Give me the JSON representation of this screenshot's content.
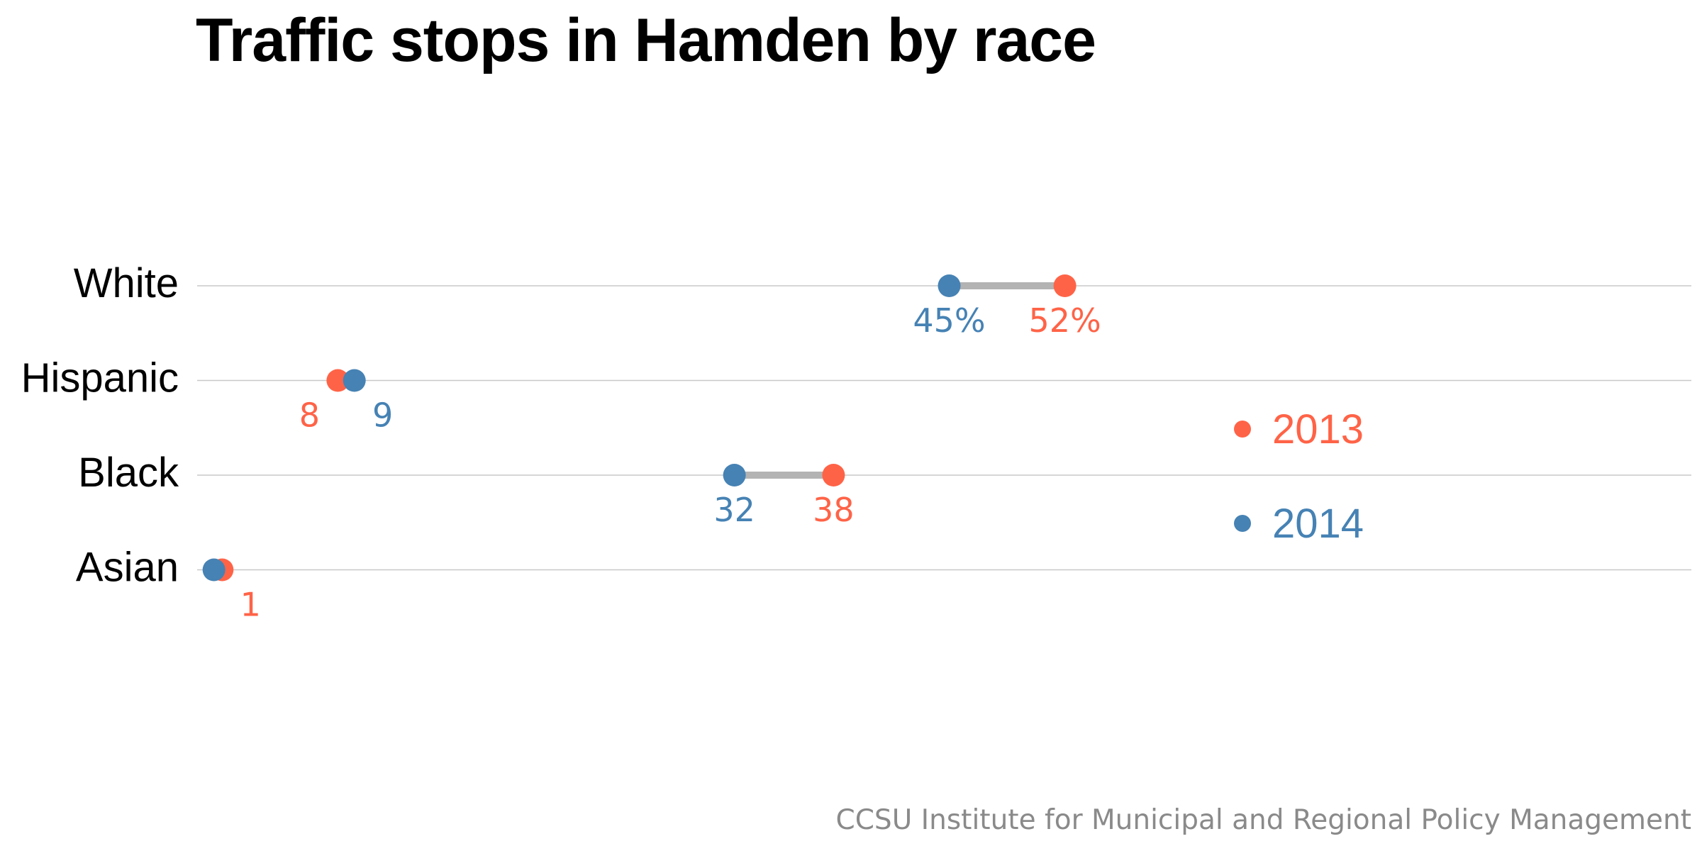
{
  "chart_data": {
    "type": "dot",
    "title": "Traffic stops in Hamden by race",
    "source": "CCSU Institute for Municipal and Regional Policy Management",
    "unit": "%",
    "categories": [
      "White",
      "Hispanic",
      "Black",
      "Asian"
    ],
    "series": [
      {
        "name": "2013",
        "color": "#ff6347",
        "values": [
          52,
          8,
          38,
          1
        ],
        "labels": [
          "52%",
          "8",
          "38",
          "1"
        ]
      },
      {
        "name": "2014",
        "color": "#4682b4",
        "values": [
          45,
          9,
          32,
          0.5
        ],
        "labels": [
          "45%",
          "9",
          "32",
          ""
        ]
      }
    ],
    "xlim": [
      0,
      100
    ],
    "connector_color": "#b3b3b3",
    "grid": true,
    "legend_position": "right"
  }
}
